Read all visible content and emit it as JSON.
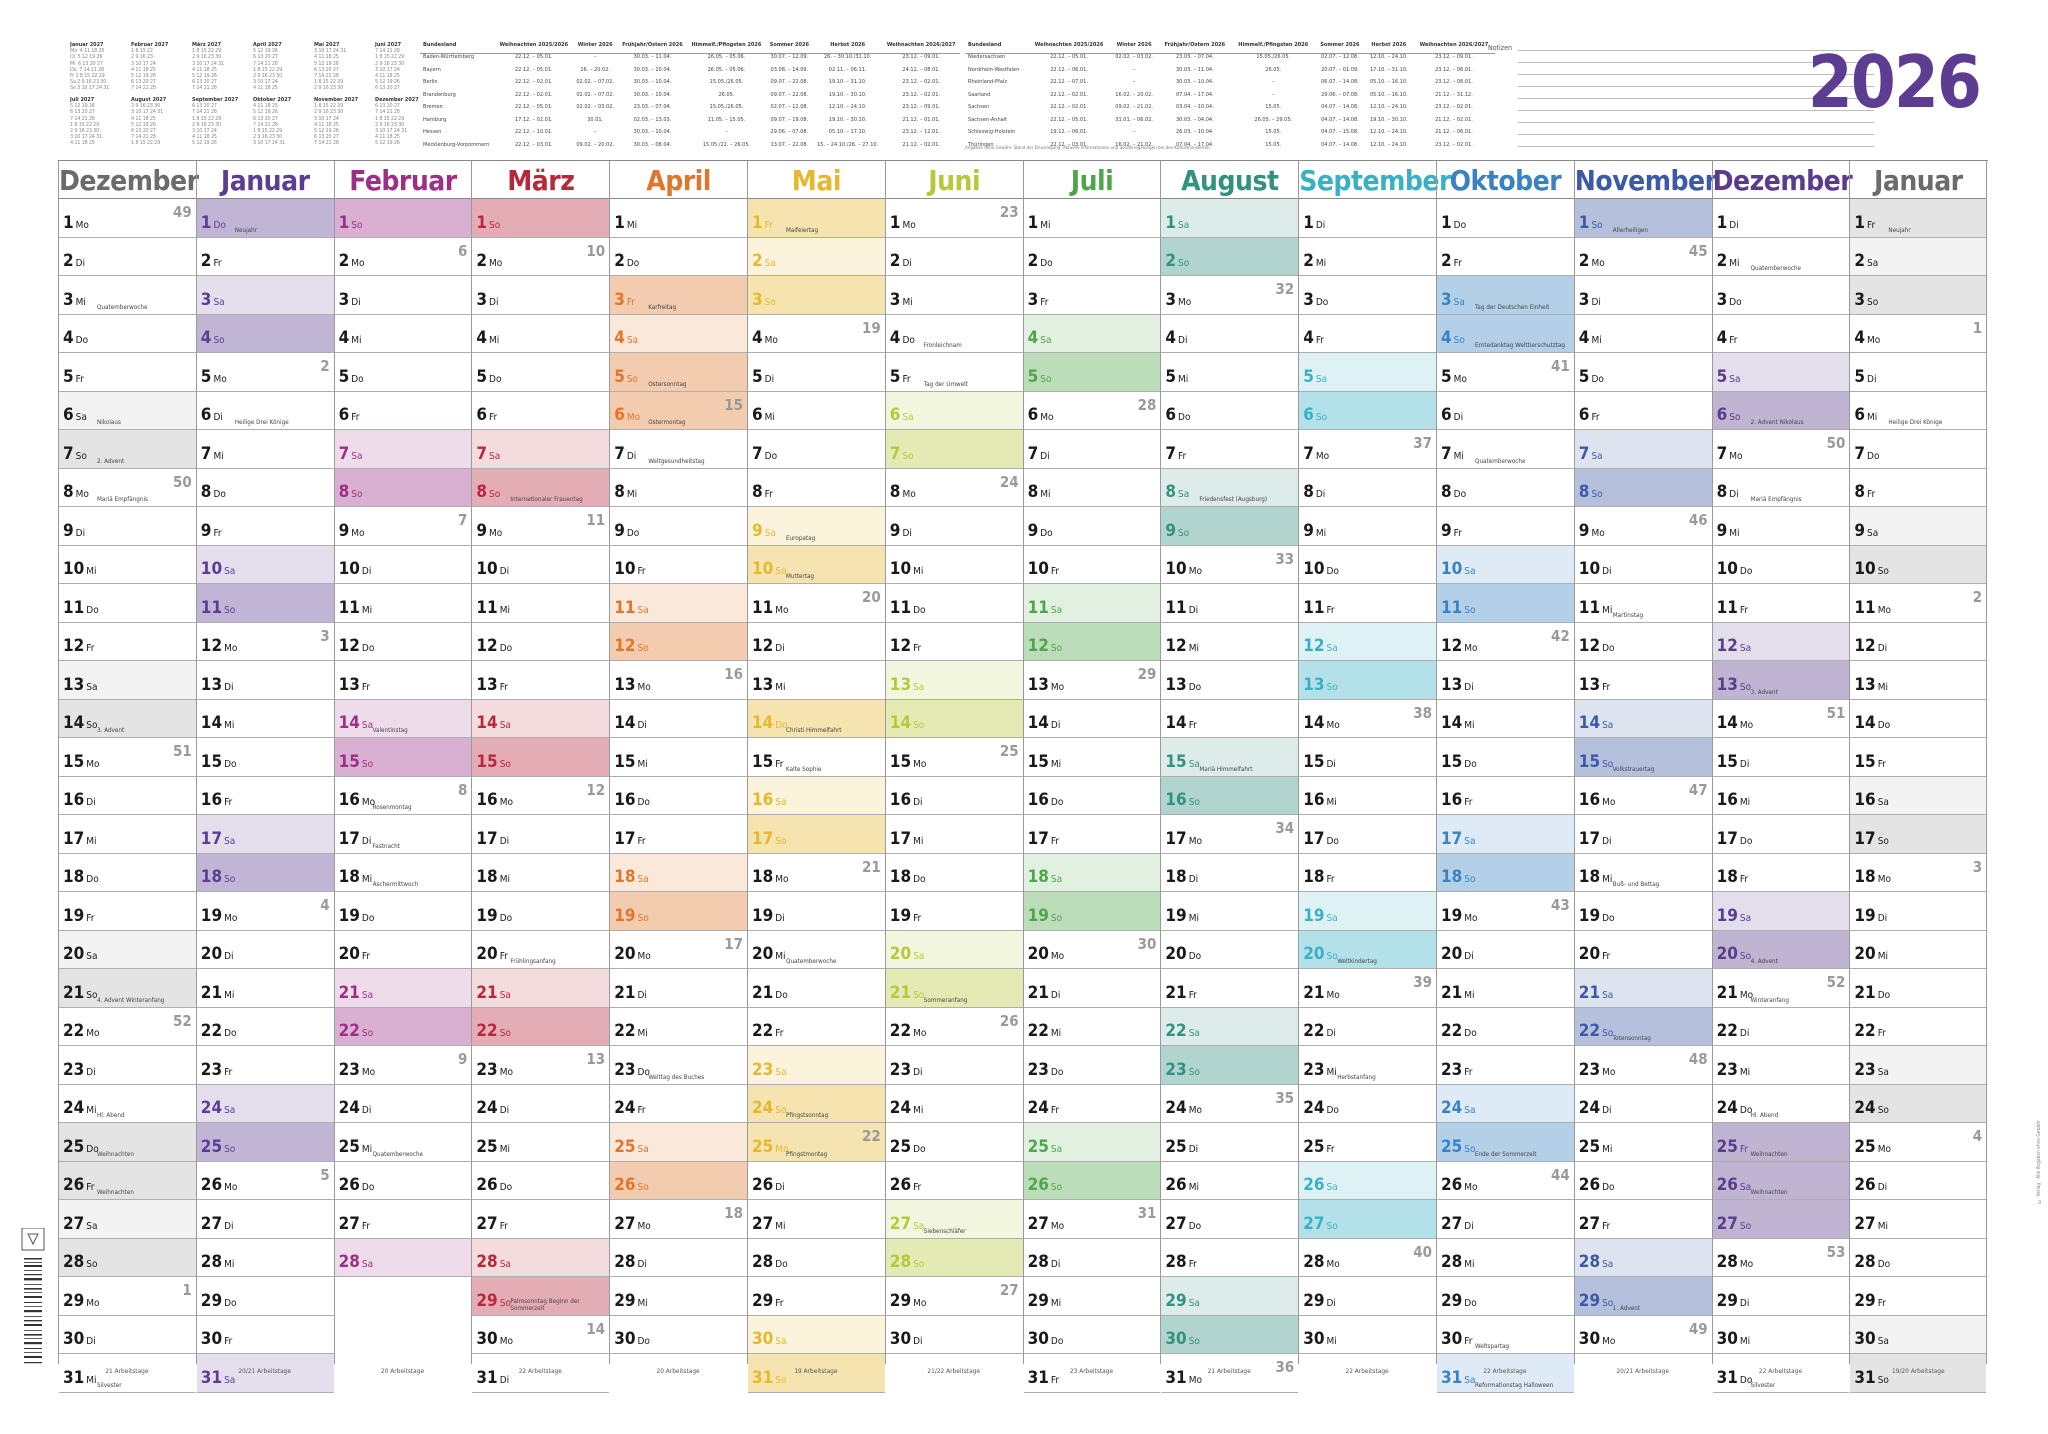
{
  "year": "2026",
  "header": {
    "mini_months": [
      {
        "t": "Januar 2027",
        "g": "Mo  4 11 18 25\nDi  5 12 19 26\nMi  6 13 20 27\nDo  7 14 21 28\nFr 1 8 15 22 29\nSa 2 9 16 23 30\nSo 3 10 17 24 31"
      },
      {
        "t": "Februar 2027",
        "g": "1 8 15 22\n2 9 16 23\n3 10 17 24\n4 11 18 25\n5 12 19 26\n6 13 20 27\n7 14 21 28"
      },
      {
        "t": "März 2027",
        "g": "1 8 15 22 29\n2 9 16 23 30\n3 10 17 24 31\n4 11 18 25\n5 12 19 26\n6 13 20 27\n7 14 21 28"
      },
      {
        "t": "April 2027",
        "g": "5 12 19 26\n6 13 20 27\n7 14 21 28\n1 8 15 22 29\n2 9 16 23 30\n3 10 17 24\n4 11 18 25"
      },
      {
        "t": "Mai 2027",
        "g": "3 10 17 24 31\n4 11 18 25\n5 12 19 26\n6 13 20 27\n7 14 21 28\n1 8 15 22 29\n2 9 16 23 30"
      },
      {
        "t": "Juni 2027",
        "g": "7 14 21 28\n1 8 15 22 29\n2 9 16 23 30\n3 10 17 24\n4 11 18 25\n5 12 19 26\n6 13 20 27"
      },
      {
        "t": "Juli 2027",
        "g": "5 12 19 26\n6 13 20 27\n7 14 21 28\n1 8 15 22 29\n2 9 16 23 30\n3 10 17 24 31\n4 11 18 25"
      },
      {
        "t": "August 2027",
        "g": "2 9 16 23 30\n3 10 17 24 31\n4 11 18 25\n5 12 19 26\n6 13 20 27\n7 14 21 28\n1 8 15 22 29"
      },
      {
        "t": "September 2027",
        "g": "6 13 20 27\n7 14 21 28\n1 8 15 22 29\n2 9 16 23 30\n3 10 17 24\n4 11 18 25\n5 12 19 26"
      },
      {
        "t": "Oktober 2027",
        "g": "4 11 18 25\n5 12 19 26\n6 13 20 27\n7 14 21 28\n1 8 15 22 29\n2 9 16 23 30\n3 10 17 24 31"
      },
      {
        "t": "November 2027",
        "g": "1 8 15 22 29\n2 9 16 23 30\n3 10 17 24\n4 11 18 25\n5 12 19 26\n6 13 20 27\n7 14 21 28"
      },
      {
        "t": "Dezember 2027",
        "g": "6 13 20 27\n7 14 21 28\n1 8 15 22 29\n2 9 16 23 30\n3 10 17 24 31\n4 11 18 25\n5 12 19 26"
      }
    ],
    "holidays_left": {
      "headers": [
        "Bundesland",
        "Weihnachten 2025/2026",
        "Winter 2026",
        "Frühjahr/Ostern 2026",
        "Himmelf./Pfingsten 2026",
        "Sommer 2026",
        "Herbst 2026",
        "Weihnachten 2026/2027"
      ],
      "rows": [
        [
          "Baden-Württemberg",
          "22.12. – 05.01.",
          "–",
          "30.03. – 11.04.",
          "26.05. – 05.06.",
          "30.07. – 12.09.",
          "26. – 30.10./31.10.",
          "23.12. – 09.01."
        ],
        [
          "Bayern",
          "22.12. – 05.01.",
          "16. – 20.02.",
          "30.03. – 10.04.",
          "26.05. – 05.06.",
          "03.08. – 14.09.",
          "02.11. – 06.11.",
          "24.12. – 08.01."
        ],
        [
          "Berlin",
          "22.12. – 02.01.",
          "02.02. – 07.02.",
          "30.03. – 10.04.",
          "15.05./26.05.",
          "09.07. – 22.08.",
          "19.10. – 31.10.",
          "23.12. – 02.01."
        ],
        [
          "Brandenburg",
          "22.12. – 02.01.",
          "02.02. – 07.02.",
          "30.03. – 10.04.",
          "26.05.",
          "09.07. – 22.08.",
          "19.10. – 30.10.",
          "23.12. – 02.01."
        ],
        [
          "Bremen",
          "22.12. – 05.01.",
          "02.02. – 03.02.",
          "23.03. – 07.04.",
          "15.05./26.05.",
          "02.07. – 12.08.",
          "12.10. – 24.10.",
          "23.12. – 09.01."
        ],
        [
          "Hamburg",
          "17.12. – 02.01.",
          "30.01.",
          "02.03. – 13.03.",
          "11.05. – 15.05.",
          "09.07. – 19.08.",
          "19.10. – 30.10.",
          "21.12. – 01.01."
        ],
        [
          "Hessen",
          "22.12. – 10.01.",
          "–",
          "30.03. – 10.04.",
          "–",
          "29.06. – 07.08.",
          "05.10. – 17.10.",
          "23.12. – 12.01."
        ],
        [
          "Mecklenburg-Vorpommern",
          "22.12. – 03.01.",
          "09.02. – 20.02.",
          "30.03. – 08.04.",
          "15.05./22. – 26.05.",
          "13.07. – 22.08.",
          "15. – 24.10./26. – 27.10.",
          "21.12. – 02.01."
        ]
      ]
    },
    "holidays_right": {
      "headers": [
        "Bundesland",
        "Weihnachten 2025/2026",
        "Winter 2026",
        "Frühjahr/Ostern 2026",
        "Himmelf./Pfingsten 2026",
        "Sommer 2026",
        "Herbst 2026",
        "Weihnachten 2026/2027"
      ],
      "rows": [
        [
          "Niedersachsen",
          "22.12. – 05.01.",
          "02.02. – 03.02.",
          "23.03. – 07.04.",
          "15.05./26.05.",
          "02.07. – 12.08.",
          "12.10. – 24.10.",
          "23.12. – 09.01."
        ],
        [
          "Nordrhein-Westfalen",
          "22.12. – 06.01.",
          "–",
          "30.03. – 11.04.",
          "26.05.",
          "20.07. – 01.09.",
          "17.10. – 31.10.",
          "23.12. – 06.01."
        ],
        [
          "Rheinland-Pfalz",
          "22.12. – 07.01.",
          "–",
          "30.03. – 10.04.",
          "–",
          "06.07. – 14.08.",
          "05.10. – 16.10.",
          "23.12. – 08.01."
        ],
        [
          "Saarland",
          "22.12. – 02.01.",
          "16.02. – 20.02.",
          "07.04. – 17.04.",
          "–",
          "29.06. – 07.08.",
          "05.10. – 16.10.",
          "21.12. – 31.12."
        ],
        [
          "Sachsen",
          "22.12. – 02.01.",
          "09.02. – 21.02.",
          "03.04. – 10.04.",
          "15.05.",
          "04.07. – 14.08.",
          "12.10. – 24.10.",
          "23.12. – 02.01."
        ],
        [
          "Sachsen-Anhalt",
          "22.12. – 05.01.",
          "31.01. – 06.02.",
          "30.03. – 04.04.",
          "26.05. – 29.05.",
          "04.07. – 14.08.",
          "19.10. – 30.10.",
          "21.12. – 02.01."
        ],
        [
          "Schleswig-Holstein",
          "19.12. – 06.01.",
          "–",
          "26.03. – 10.04.",
          "15.05.",
          "04.07. – 15.08.",
          "12.10. – 24.10.",
          "21.12. – 06.01."
        ],
        [
          "Thüringen",
          "22.12. – 03.01.",
          "16.02. – 21.02.",
          "07.04. – 17.04.",
          "15.05.",
          "04.07. – 14.08.",
          "12.10. – 24.10.",
          "23.12. – 02.01."
        ]
      ]
    },
    "footnote": "Angaben ohne Gewähr. Stand der Drucklegung. Aktuelle Informationen und Sonderregelungen bei den Kultusministerien.",
    "notes_label": "Notizen"
  },
  "months": [
    {
      "name": "Dezember",
      "color": "#6b6b6b",
      "start": 0,
      "days": 31,
      "work": "21 Arbeitstage"
    },
    {
      "name": "Januar",
      "color": "#5d3d92",
      "start": 3,
      "days": 31,
      "work": "20/21 Arbeitstage"
    },
    {
      "name": "Februar",
      "color": "#9c2f86",
      "start": 6,
      "days": 28,
      "work": "20 Arbeitstage"
    },
    {
      "name": "März",
      "color": "#b8273c",
      "start": 6,
      "days": 31,
      "work": "22 Arbeitstage"
    },
    {
      "name": "April",
      "color": "#e0762c",
      "start": 2,
      "days": 30,
      "work": "20 Arbeitstage"
    },
    {
      "name": "Mai",
      "color": "#e6b82e",
      "start": 4,
      "days": 31,
      "work": "19 Arbeitstage"
    },
    {
      "name": "Juni",
      "color": "#b5c93a",
      "start": 0,
      "days": 30,
      "work": "21/22 Arbeitstage"
    },
    {
      "name": "Juli",
      "color": "#4fa64a",
      "start": 2,
      "days": 31,
      "work": "23 Arbeitstage"
    },
    {
      "name": "August",
      "color": "#33917f",
      "start": 5,
      "days": 31,
      "work": "21 Arbeitstage"
    },
    {
      "name": "September",
      "color": "#3ab0c4",
      "start": 1,
      "days": 30,
      "work": "22 Arbeitstage"
    },
    {
      "name": "Oktober",
      "color": "#3b82c2",
      "start": 3,
      "days": 31,
      "work": "22 Arbeitstage"
    },
    {
      "name": "November",
      "color": "#3c5aa6",
      "start": 6,
      "days": 30,
      "work": "20/21 Arbeitstage"
    },
    {
      "name": "Dezember",
      "color": "#5a3b8c",
      "start": 1,
      "days": 31,
      "work": "22 Arbeitstage"
    },
    {
      "name": "Januar",
      "color": "#6b6b6b",
      "start": 4,
      "days": 31,
      "work": "19/20 Arbeitstage"
    }
  ],
  "weekdays": [
    "Mo",
    "Di",
    "Mi",
    "Do",
    "Fr",
    "Sa",
    "So"
  ],
  "events": {
    "0": {
      "3": "Quatemberwoche",
      "6": "Nikolaus",
      "7": "2. Advent",
      "8": "Mariä Empfängnis",
      "14": "3. Advent",
      "21": "4. Advent Winteranfang",
      "24": "Hl. Abend",
      "25": "Weihnachten",
      "26": "Weihnachten",
      "31": "Silvester"
    },
    "1": {
      "1": "Neujahr",
      "6": "Heilige Drei Könige"
    },
    "2": {
      "14": "Valentinstag",
      "16": "Rosenmontag",
      "17": "Fastnacht",
      "18": "Aschermittwoch",
      "25": "Quatemberwoche"
    },
    "3": {
      "8": "Internationaler Frauentag",
      "20": "Frühlingsanfang",
      "29": "Palmsonntag Beginn der Sommerzeit"
    },
    "4": {
      "3": "Karfreitag",
      "5": "Ostersonntag",
      "6": "Ostermontag",
      "7": "Weltgesundheitstag",
      "23": "Welttag des Buches"
    },
    "5": {
      "1": "Maifeiertag",
      "9": "Europatag",
      "10": "Muttertag",
      "14": "Christi Himmelfahrt",
      "15": "Kalte Sophie",
      "20": "Quatemberwoche",
      "24": "Pfingstsonntag",
      "25": "Pfingstmontag"
    },
    "6": {
      "4": "Fronleichnam",
      "5": "Tag der Umwelt",
      "21": "Sommeranfang",
      "27": "Siebenschläfer"
    },
    "8": {
      "8": "Friedensfest (Augsburg)",
      "15": "Mariä Himmelfahrt"
    },
    "9": {
      "20": "Weltkindertag",
      "23": "Herbstanfang"
    },
    "10": {
      "3": "Tag der Deutschen Einheit",
      "4": "Erntedanktag Welttierschutztag",
      "7": "Quatemberwoche",
      "25": "Ende der Sommerzeit",
      "30": "Weltspartag",
      "31": "Reformationstag Halloween"
    },
    "11": {
      "1": "Allerheiligen",
      "11": "Martinstag",
      "15": "Volkstrauertag",
      "18": "Buß- und Bettag",
      "22": "Totensonntag",
      "29": "1. Advent"
    },
    "12": {
      "2": "Quatemberwoche",
      "6": "2. Advent Nikolaus",
      "8": "Mariä Empfängnis",
      "13": "3. Advent",
      "20": "4. Advent",
      "21": "Winteranfang",
      "24": "Hl. Abend",
      "25": "Weihnachten",
      "26": "Weihnachten",
      "31": "Silvester"
    },
    "13": {
      "1": "Neujahr",
      "6": "Heilige Drei Könige"
    }
  },
  "holiday_days": {
    "1": [
      1
    ],
    "4": [
      3,
      5,
      6
    ],
    "5": [
      1,
      14,
      24,
      25
    ],
    "10": [
      3
    ],
    "11": [
      1
    ],
    "12": [
      25,
      26
    ],
    "0": [
      25,
      26
    ],
    "13": [
      1
    ]
  },
  "week_numbers": [
    [
      [
        1,
        "49"
      ],
      [
        8,
        "50"
      ],
      [
        15,
        "51"
      ],
      [
        22,
        "52"
      ],
      [
        29,
        "1"
      ]
    ],
    [
      [
        5,
        "2"
      ],
      [
        12,
        "3"
      ],
      [
        19,
        "4"
      ],
      [
        26,
        "5"
      ]
    ],
    [
      [
        2,
        "6"
      ],
      [
        9,
        "7"
      ],
      [
        16,
        "8"
      ],
      [
        23,
        "9"
      ]
    ],
    [
      [
        2,
        "10"
      ],
      [
        9,
        "11"
      ],
      [
        16,
        "12"
      ],
      [
        23,
        "13"
      ],
      [
        30,
        "14"
      ]
    ],
    [
      [
        6,
        "15"
      ],
      [
        13,
        "16"
      ],
      [
        20,
        "17"
      ],
      [
        27,
        "18"
      ]
    ],
    [
      [
        4,
        "19"
      ],
      [
        11,
        "20"
      ],
      [
        18,
        "21"
      ],
      [
        25,
        "22"
      ]
    ],
    [
      [
        1,
        "23"
      ],
      [
        8,
        "24"
      ],
      [
        15,
        "25"
      ],
      [
        22,
        "26"
      ],
      [
        29,
        "27"
      ]
    ],
    [
      [
        6,
        "28"
      ],
      [
        13,
        "29"
      ],
      [
        20,
        "30"
      ],
      [
        27,
        "31"
      ]
    ],
    [
      [
        3,
        "32"
      ],
      [
        10,
        "33"
      ],
      [
        17,
        "34"
      ],
      [
        24,
        "35"
      ],
      [
        31,
        "36"
      ]
    ],
    [
      [
        7,
        "37"
      ],
      [
        14,
        "38"
      ],
      [
        21,
        "39"
      ],
      [
        28,
        "40"
      ]
    ],
    [
      [
        5,
        "41"
      ],
      [
        12,
        "42"
      ],
      [
        19,
        "43"
      ],
      [
        26,
        "44"
      ]
    ],
    [
      [
        2,
        "45"
      ],
      [
        9,
        "46"
      ],
      [
        16,
        "47"
      ],
      [
        23,
        "48"
      ],
      [
        30,
        "49"
      ]
    ],
    [
      [
        7,
        "50"
      ],
      [
        14,
        "51"
      ],
      [
        21,
        "52"
      ],
      [
        28,
        "53"
      ]
    ],
    [
      [
        4,
        "1"
      ],
      [
        11,
        "2"
      ],
      [
        18,
        "3"
      ],
      [
        25,
        "4"
      ]
    ]
  ],
  "side_text": "© Verlag · Alle Angaben ohne Gewähr"
}
